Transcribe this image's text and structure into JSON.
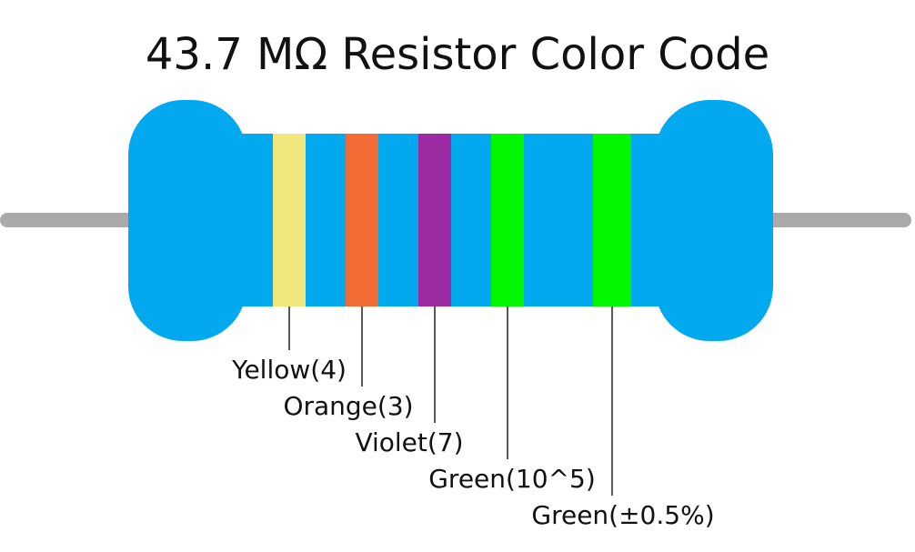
{
  "title": "43.7 MΩ Resistor Color Code",
  "colors": {
    "body": "#03a9ef",
    "lead": "#aaaaaa",
    "callout_line": "#222222",
    "text": "#111111"
  },
  "bands": [
    {
      "name": "yellow",
      "color": "#f0e87c",
      "label": "Yellow(4)"
    },
    {
      "name": "orange",
      "color": "#f26b35",
      "label": "Orange(3)"
    },
    {
      "name": "violet",
      "color": "#9b2aa3",
      "label": "Violet(7)"
    },
    {
      "name": "green-multiplier",
      "color": "#00f700",
      "label": "Green(10^5)"
    },
    {
      "name": "green-tolerance",
      "color": "#00f700",
      "label": "Green(±0.5%)"
    }
  ]
}
